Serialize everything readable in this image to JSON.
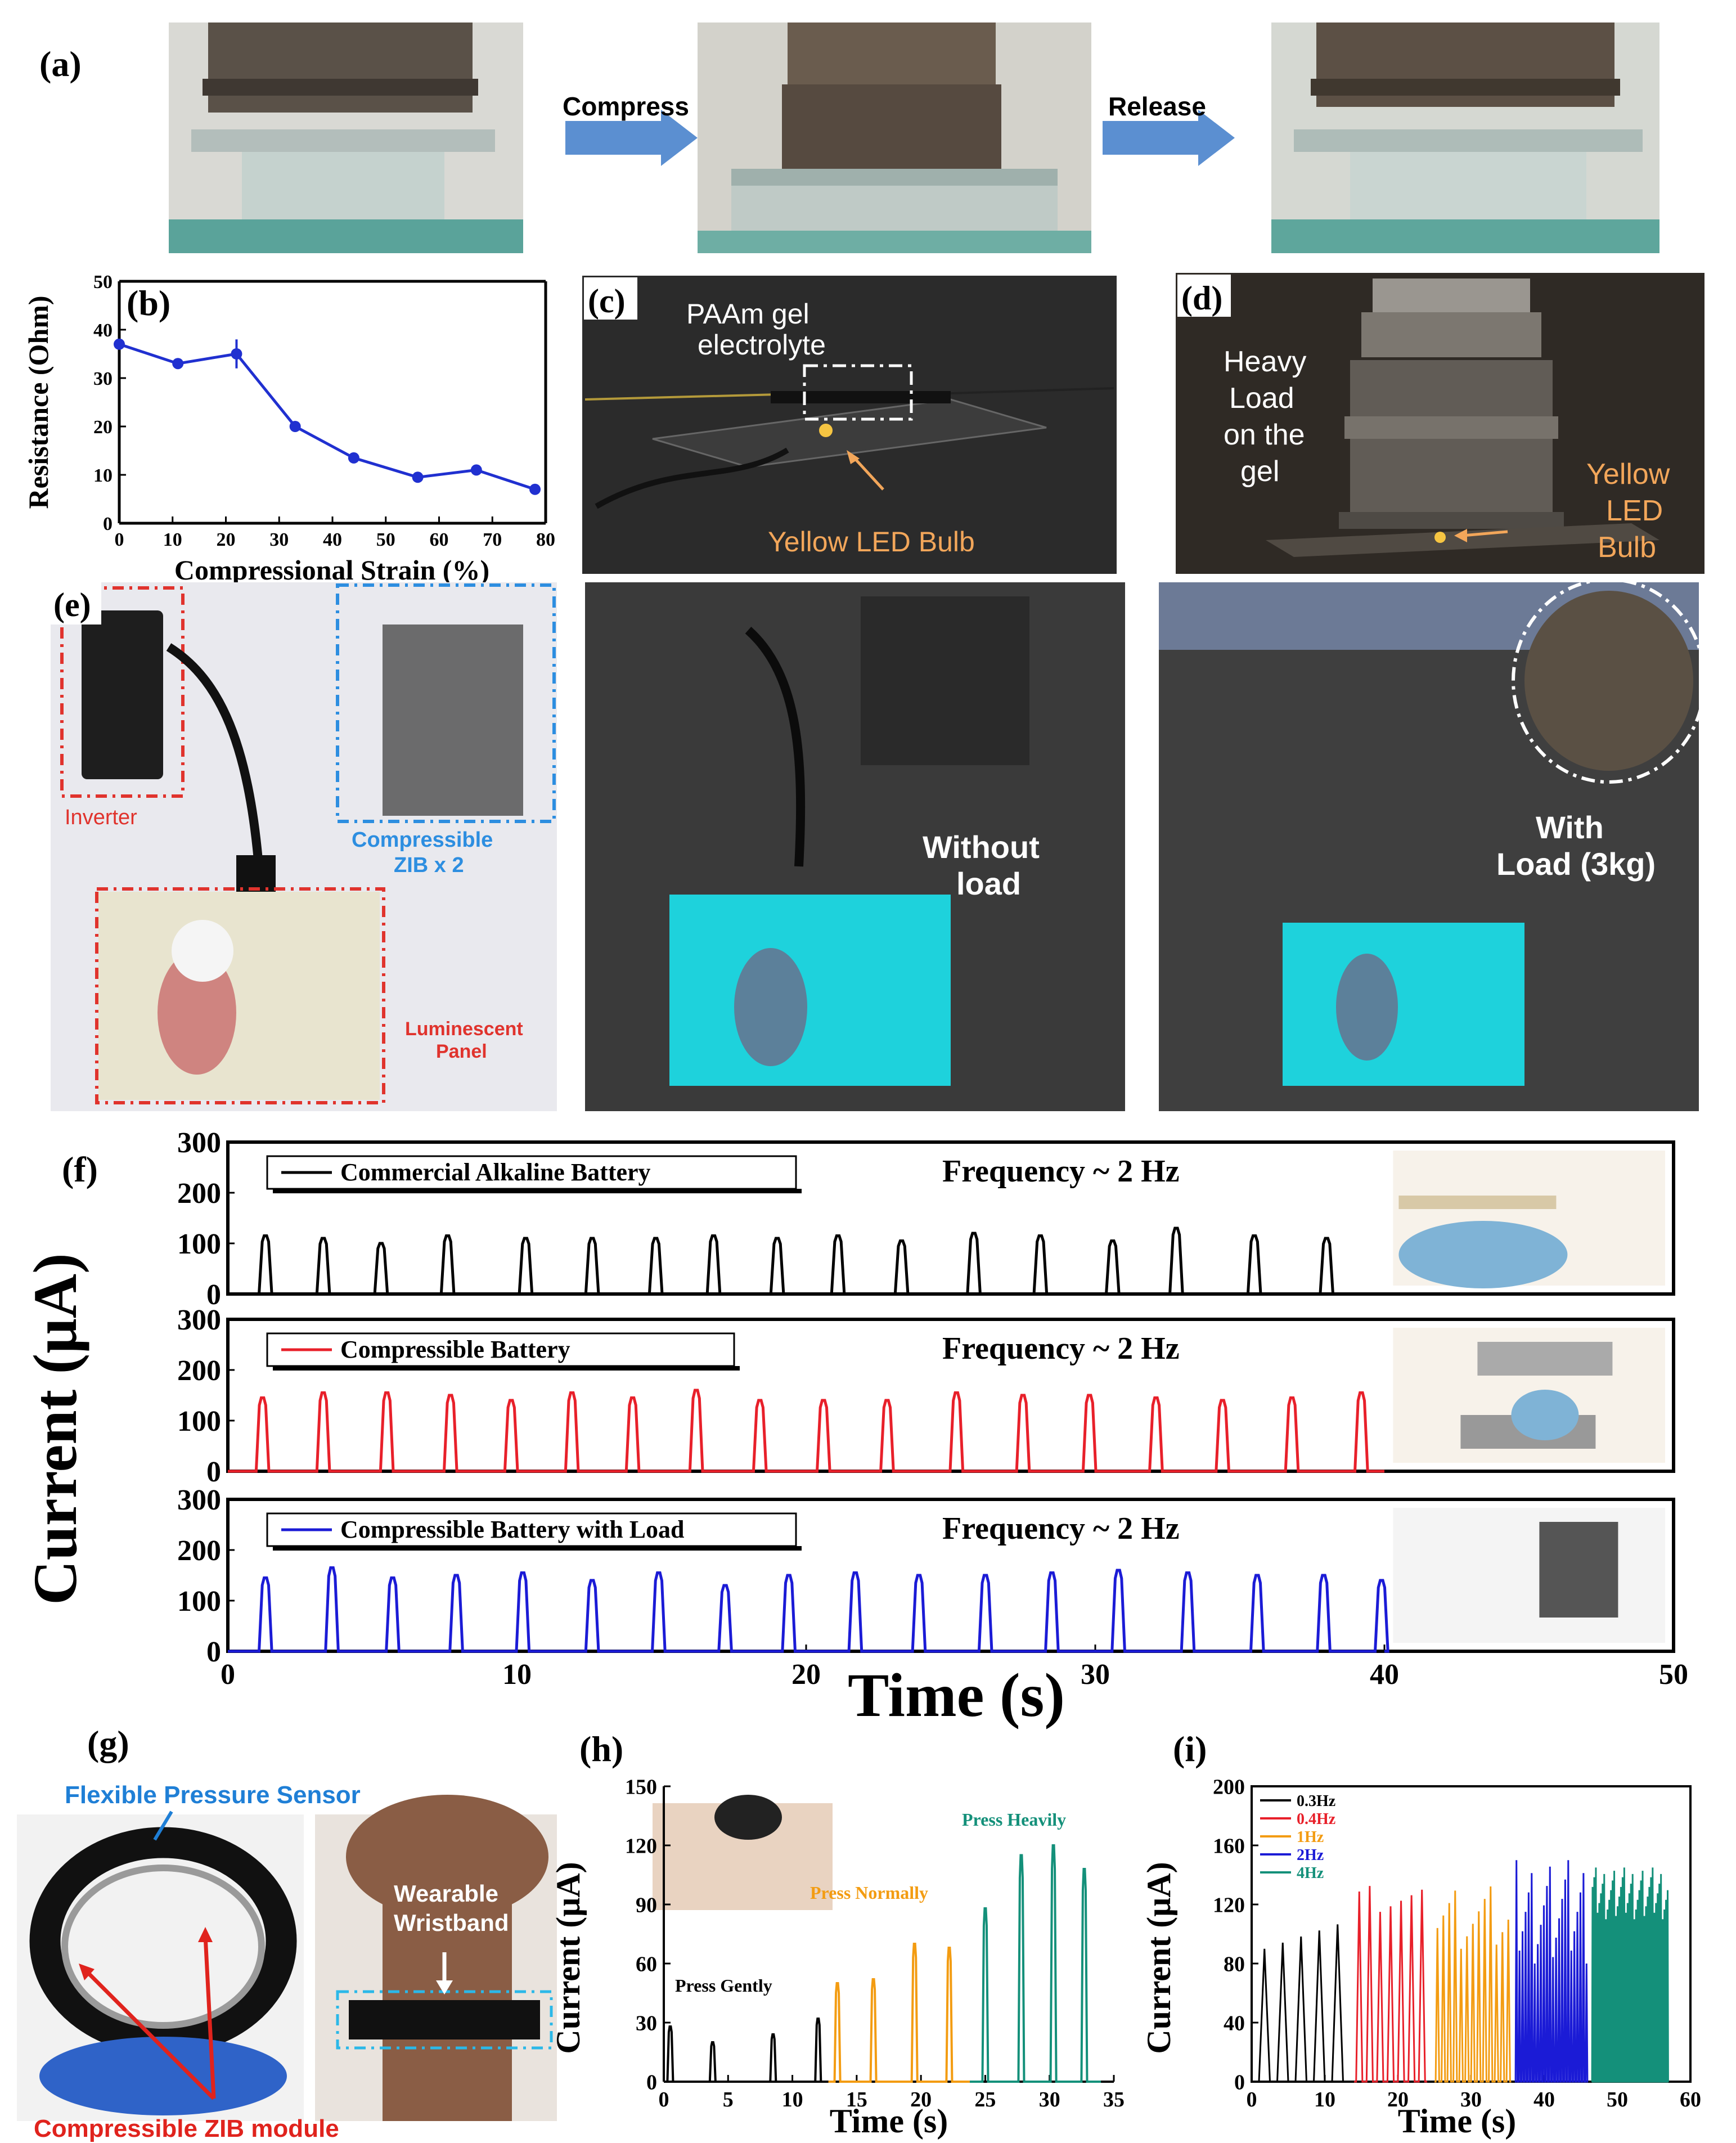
{
  "panel_labels": {
    "a": "(a)",
    "b": "(b)",
    "c": "(c)",
    "d": "(d)",
    "e": "(e)",
    "f": "(f)",
    "g": "(g)",
    "h": "(h)",
    "i": "(i)"
  },
  "panel_a": {
    "compress": "Compress",
    "release": "Release"
  },
  "panel_c": {
    "gel_label_1": "PAAm gel",
    "gel_label_2": "electrolyte",
    "led_label": "Yellow LED Bulb"
  },
  "panel_d": {
    "load_1": "Heavy",
    "load_2": "Load",
    "load_3": "on the",
    "load_4": "gel",
    "led_1": "Yellow",
    "led_2": "LED",
    "led_3": "Bulb"
  },
  "panel_e": {
    "inverter": "Inverter",
    "zib_1": "Compressible",
    "zib_2": "ZIB x 2",
    "panel_1": "Luminescent",
    "panel_2": "Panel",
    "no_load_1": "Without",
    "no_load_2": "load",
    "with_load_1": "With",
    "with_load_2": "Load (3kg)"
  },
  "panel_g": {
    "sensor": "Flexible Pressure Sensor",
    "wrist_1": "Wearable",
    "wrist_2": "Wristband",
    "module": "Compressible ZIB module"
  },
  "colors": {
    "black": "#000000",
    "red": "#e8202a",
    "blue": "#1b1bd6",
    "orange": "#f39c12",
    "teal": "#14907a",
    "b_line": "#2030d0",
    "arrow": "#5b8fd1",
    "photo_bg": "#2a2a2a",
    "screen": "#27d8e0",
    "sensor_label": "#1f7fd6",
    "module_label": "#e0231d"
  },
  "chart_data": [
    {
      "id": "b",
      "type": "line",
      "title": "",
      "xlabel": "Compressional Strain (%)",
      "ylabel": "Resistance (Ohm)",
      "x": [
        0,
        11,
        22,
        33,
        44,
        56,
        67,
        78
      ],
      "y": [
        37,
        33,
        35,
        20,
        13.5,
        9.5,
        11,
        7
      ],
      "error": [
        0,
        0,
        3,
        0,
        0,
        0,
        0,
        0
      ],
      "xlim": [
        0,
        80
      ],
      "ylim": [
        0,
        50
      ],
      "xticks": [
        0,
        10,
        20,
        30,
        40,
        50,
        60,
        70,
        80
      ],
      "yticks": [
        0,
        10,
        20,
        30,
        40,
        50
      ]
    },
    {
      "id": "f",
      "type": "line",
      "xlabel": "Time (s)",
      "ylabel": "Current (μA)",
      "xlim": [
        0,
        50
      ],
      "ylim": [
        0,
        300
      ],
      "xticks": [
        0,
        10,
        20,
        30,
        40,
        50
      ],
      "yticks": [
        0,
        100,
        200,
        300
      ],
      "frequency_label": "Frequency ~ 2 Hz",
      "series": [
        {
          "name": "Commercial Alkaline Battery",
          "peak_times": [
            1.3,
            3.3,
            5.3,
            7.6,
            10.3,
            12.6,
            14.8,
            16.8,
            19.0,
            21.1,
            23.3,
            25.8,
            28.1,
            30.6,
            32.8,
            35.5,
            38.0
          ],
          "peak_values": [
            115,
            110,
            100,
            115,
            110,
            110,
            110,
            115,
            110,
            115,
            105,
            120,
            115,
            105,
            130,
            115,
            110
          ]
        },
        {
          "name": "Compressible Battery",
          "peak_times": [
            1.2,
            3.3,
            5.5,
            7.7,
            9.8,
            11.9,
            14.0,
            16.2,
            18.4,
            20.6,
            22.8,
            25.2,
            27.5,
            29.8,
            32.1,
            34.4,
            36.8,
            39.2
          ],
          "peak_values": [
            145,
            155,
            155,
            150,
            140,
            155,
            145,
            160,
            140,
            140,
            140,
            155,
            150,
            150,
            145,
            140,
            145,
            155
          ]
        },
        {
          "name": "Compressible Battery with Load",
          "peak_times": [
            1.3,
            3.6,
            5.7,
            7.9,
            10.2,
            12.6,
            14.9,
            17.2,
            19.4,
            21.7,
            23.9,
            26.2,
            28.5,
            30.8,
            33.2,
            35.6,
            37.9,
            39.9
          ],
          "peak_values": [
            145,
            165,
            145,
            150,
            155,
            140,
            155,
            130,
            150,
            155,
            150,
            150,
            155,
            160,
            155,
            150,
            150,
            140
          ]
        }
      ]
    },
    {
      "id": "h",
      "type": "line",
      "xlabel": "Time (s)",
      "ylabel": "Current (μA)",
      "xlim": [
        0,
        35
      ],
      "ylim": [
        0,
        150
      ],
      "xticks": [
        0,
        5,
        10,
        15,
        20,
        25,
        30,
        35
      ],
      "yticks": [
        0,
        30,
        60,
        90,
        120,
        150
      ],
      "annotations": [
        "Press Gently",
        "Press Normally",
        "Press Heavily"
      ],
      "series": [
        {
          "name": "Press Gently",
          "peak_times": [
            0.5,
            3.8,
            8.5,
            12.0
          ],
          "peak_values": [
            28,
            20,
            24,
            32
          ]
        },
        {
          "name": "Press Normally",
          "peak_times": [
            13.5,
            16.3,
            19.5,
            22.2
          ],
          "peak_values": [
            50,
            52,
            70,
            68
          ]
        },
        {
          "name": "Press Heavily",
          "peak_times": [
            25.0,
            27.8,
            30.3,
            32.7
          ],
          "peak_values": [
            88,
            115,
            120,
            108
          ]
        }
      ]
    },
    {
      "id": "i",
      "type": "line",
      "xlabel": "Time (s)",
      "ylabel": "Current (μA)",
      "xlim": [
        0,
        60
      ],
      "ylim": [
        0,
        200
      ],
      "xticks": [
        0,
        10,
        20,
        30,
        40,
        50,
        60
      ],
      "yticks": [
        0,
        40,
        80,
        120,
        160,
        200
      ],
      "series": [
        {
          "name": "0.3Hz",
          "t_start": 0.5,
          "t_end": 13,
          "count": 5,
          "range": [
            90,
            112
          ]
        },
        {
          "name": "0.4Hz",
          "t_start": 14,
          "t_end": 24,
          "count": 7,
          "range": [
            115,
            135
          ]
        },
        {
          "name": "1Hz",
          "t_start": 25,
          "t_end": 35.5,
          "count": 13,
          "range": [
            90,
            135
          ]
        },
        {
          "name": "2Hz",
          "t_start": 36,
          "t_end": 46,
          "count": 24,
          "range": [
            80,
            150
          ]
        },
        {
          "name": "4Hz",
          "t_start": 46.5,
          "t_end": 57,
          "count": 46,
          "range": [
            110,
            145
          ]
        }
      ]
    }
  ]
}
